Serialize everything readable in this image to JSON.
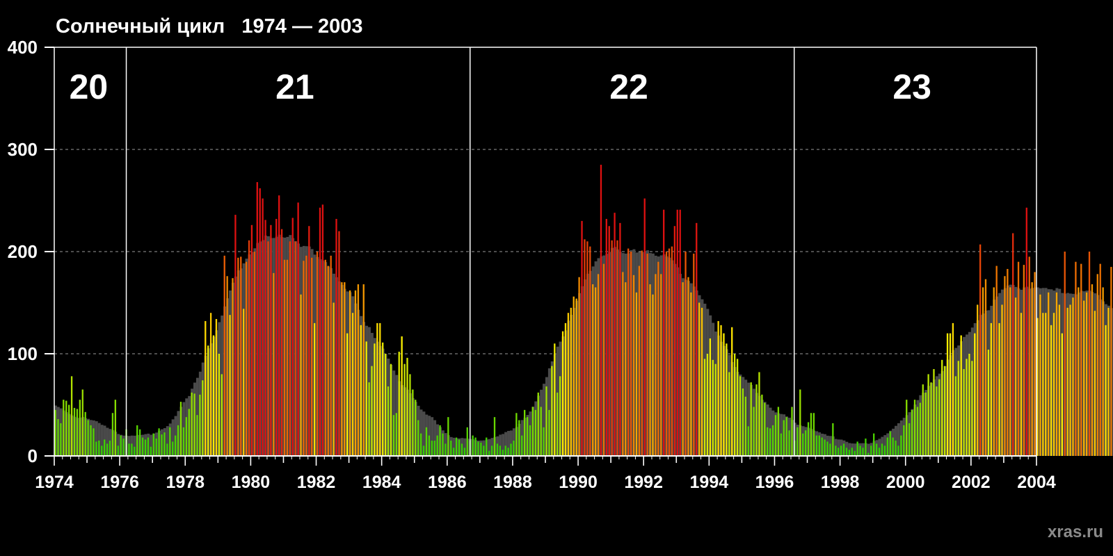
{
  "header": {
    "title": "Солнечный цикл   1974 — 2003",
    "watermark": "xras.ru"
  },
  "chart_data": {
    "type": "bar",
    "title": "Солнечный цикл   1974 — 2003",
    "xlabel": "",
    "ylabel": "",
    "xlim": [
      1974,
      2004
    ],
    "ylim": [
      0,
      400
    ],
    "y_ticks": [
      "0",
      "100",
      "200",
      "300",
      "400"
    ],
    "x_ticks": [
      "1974",
      "1976",
      "1978",
      "1980",
      "1982",
      "1984",
      "1986",
      "1988",
      "1990",
      "1992",
      "1994",
      "1996",
      "1998",
      "2000",
      "2002",
      "2004"
    ],
    "grid": true,
    "cycle_boundaries": [
      1976.2,
      1986.7,
      1996.6
    ],
    "cycles": [
      {
        "label": "20",
        "center": 1975.05
      },
      {
        "label": "21",
        "center": 1981.35
      },
      {
        "label": "22",
        "center": 1991.55
      },
      {
        "label": "23",
        "center": 2000.2
      }
    ],
    "series": [
      {
        "name": "monthly sunspot number (smoothed)",
        "color": "#4a4a4a"
      },
      {
        "name": "monthly sunspot number",
        "color": "gradient green-yellow-orange-red"
      }
    ],
    "colors": {
      "low": "#22cc00",
      "mid": "#ffee00",
      "high": "#ee7700",
      "max": "#dd1111",
      "smoothed": "#4a4a4a"
    },
    "start_year": 1974.0,
    "step_years": 0.08333,
    "monthly": [
      45,
      36,
      32,
      55,
      54,
      50,
      78,
      47,
      46,
      55,
      65,
      43,
      35,
      30,
      27,
      14,
      15,
      10,
      16,
      12,
      15,
      42,
      55,
      10,
      20,
      17,
      26,
      12,
      12,
      9,
      30,
      26,
      18,
      16,
      18,
      9,
      22,
      17,
      27,
      21,
      23,
      12,
      28,
      14,
      20,
      30,
      53,
      28,
      38,
      46,
      62,
      61,
      40,
      60,
      74,
      132,
      108,
      140,
      118,
      134,
      100,
      80,
      196,
      176,
      138,
      174,
      236,
      194,
      195,
      144,
      190,
      211,
      226,
      200,
      268,
      262,
      252,
      231,
      210,
      226,
      179,
      232,
      255,
      222,
      192,
      192,
      210,
      233,
      210,
      248,
      158,
      191,
      196,
      225,
      194,
      130,
      200,
      243,
      246,
      192,
      186,
      196,
      150,
      232,
      220,
      170,
      170,
      120,
      162,
      140,
      162,
      168,
      128,
      168,
      112,
      72,
      88,
      110,
      130,
      130,
      111,
      100,
      68,
      90,
      40,
      42,
      102,
      117,
      90,
      96,
      80,
      65,
      55,
      35,
      22,
      10,
      28,
      20,
      15,
      15,
      20,
      30,
      22,
      12,
      38,
      15,
      8,
      18,
      16,
      12,
      8,
      28,
      15,
      20,
      18,
      14,
      13,
      10,
      18,
      5,
      10,
      38,
      12,
      10,
      6,
      10,
      8,
      12,
      15,
      42,
      35,
      20,
      45,
      38,
      30,
      48,
      45,
      62,
      48,
      28,
      68,
      45,
      88,
      110,
      62,
      78,
      122,
      130,
      140,
      145,
      156,
      154,
      175,
      230,
      212,
      210,
      205,
      168,
      165,
      178,
      285,
      188,
      232,
      225,
      211,
      238,
      211,
      228,
      180,
      170,
      203,
      200,
      177,
      160,
      186,
      201,
      252,
      198,
      168,
      158,
      178,
      190,
      178,
      241,
      200,
      203,
      205,
      225,
      241,
      241,
      170,
      200,
      175,
      160,
      198,
      228,
      150,
      145,
      95,
      100,
      115,
      94,
      90,
      132,
      128,
      120,
      110,
      82,
      126,
      100,
      95,
      78,
      66,
      58,
      29,
      72,
      48,
      70,
      82,
      60,
      52,
      28,
      27,
      30,
      40,
      48,
      22,
      35,
      38,
      25,
      48,
      15,
      28,
      65,
      22,
      25,
      33,
      42,
      42,
      20,
      20,
      18,
      16,
      14,
      12,
      32,
      10,
      8,
      10,
      12,
      8,
      6,
      8,
      5,
      14,
      10,
      8,
      17,
      3,
      10,
      22,
      12,
      8,
      12,
      10,
      18,
      24,
      18,
      15,
      10,
      20,
      30,
      55,
      32,
      45,
      55,
      48,
      52,
      70,
      62,
      80,
      72,
      85,
      68,
      75,
      94,
      88,
      120,
      120,
      130,
      78,
      93,
      118,
      85,
      95,
      100,
      93,
      120,
      148,
      207,
      165,
      173,
      104,
      130,
      165,
      186,
      130,
      148,
      176,
      183,
      165,
      218,
      155,
      190,
      140,
      187,
      243,
      195,
      170,
      180,
      135,
      158,
      140,
      140,
      160,
      128,
      140,
      160,
      148,
      120,
      200,
      145,
      148,
      155,
      190,
      165,
      188,
      152,
      160,
      200,
      168,
      142,
      178,
      188,
      165,
      128,
      145,
      185,
      183,
      148,
      145,
      138,
      128,
      115,
      78,
      92,
      98,
      80,
      118,
      130,
      110,
      78,
      95,
      85
    ]
  }
}
